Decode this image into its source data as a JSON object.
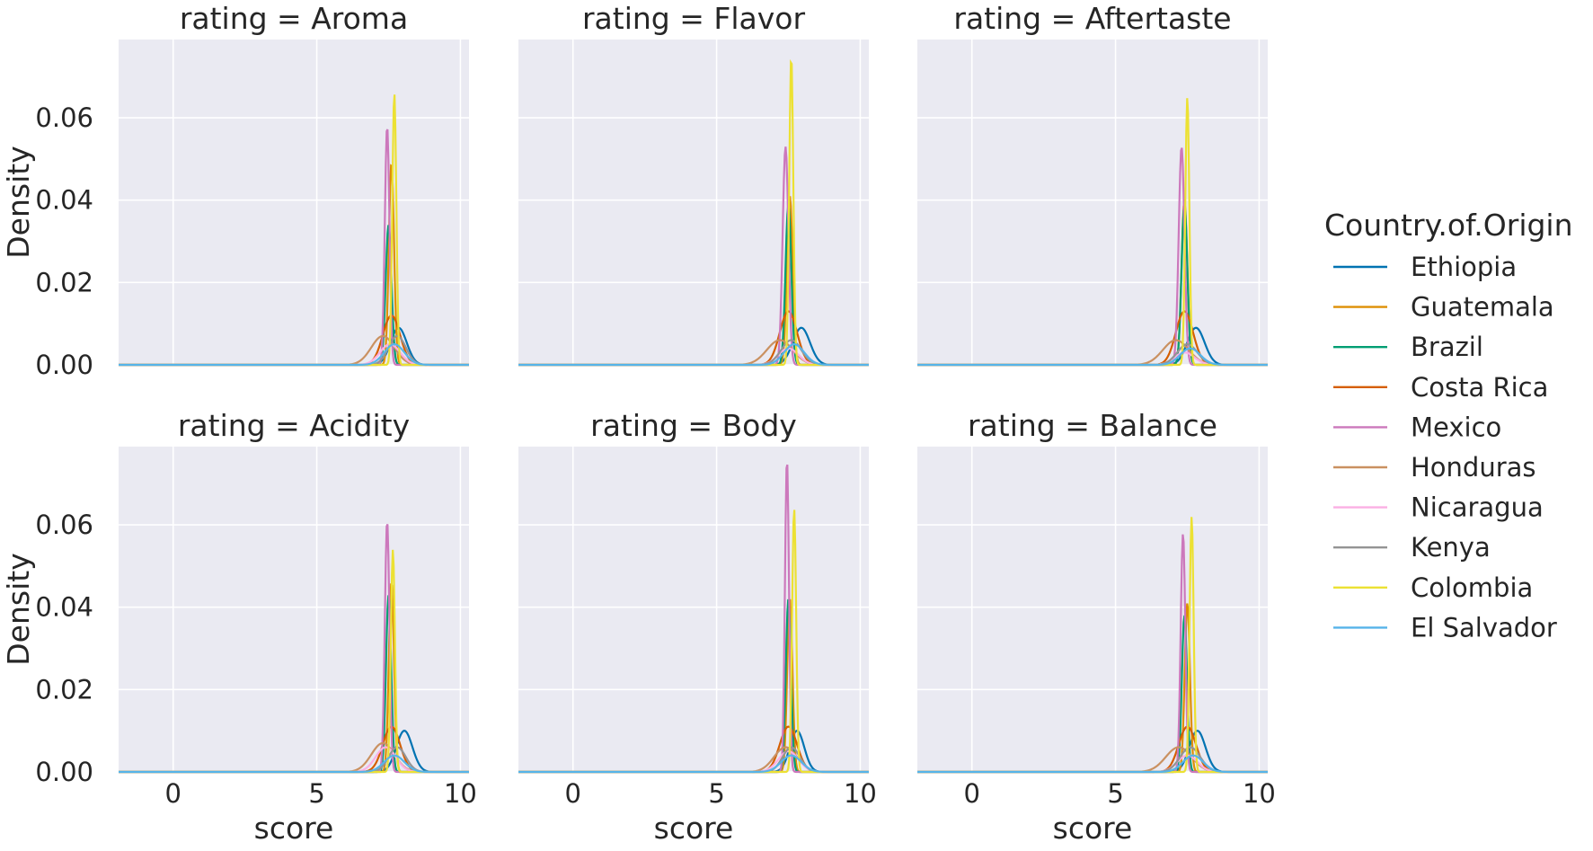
{
  "chart_data": {
    "type": "line",
    "kind": "kde",
    "facet_var_label": "rating",
    "facet_titles": [
      "rating = Aroma",
      "rating = Flavor",
      "rating = Aftertaste",
      "rating = Acidity",
      "rating = Body",
      "rating = Balance"
    ],
    "xlabel": "score",
    "ylabel": "Density",
    "xlim": [
      -1.9,
      10.3
    ],
    "ylim": [
      0,
      0.079
    ],
    "xticks": [
      0,
      5,
      10
    ],
    "xtick_labels": [
      "0",
      "5",
      "10"
    ],
    "yticks": [
      0,
      0.02,
      0.04,
      0.06
    ],
    "ytick_labels": [
      "0.00",
      "0.02",
      "0.04",
      "0.06"
    ],
    "grid": true,
    "legend": {
      "title": "Country.of.Origin",
      "placement": "right",
      "entries": [
        "Ethiopia",
        "Guatemala",
        "Brazil",
        "Costa Rica",
        "Mexico",
        "Honduras",
        "Nicaragua",
        "Kenya",
        "Colombia",
        "El Salvador"
      ]
    },
    "series_colors": {
      "Ethiopia": "#0173b2",
      "Guatemala": "#de8f05",
      "Brazil": "#029e73",
      "Costa Rica": "#d55e00",
      "Mexico": "#cc78bc",
      "Honduras": "#ca9161",
      "Nicaragua": "#fbafe4",
      "Kenya": "#949494",
      "Colombia": "#ece133",
      "El Salvador": "#56b4e9"
    },
    "facets": [
      {
        "rating": "Aroma",
        "series": [
          {
            "name": "Ethiopia",
            "peak_x": 7.85,
            "peak_density": 0.009,
            "sd": 0.28
          },
          {
            "name": "Guatemala",
            "peak_x": 7.6,
            "peak_density": 0.049,
            "sd": 0.09
          },
          {
            "name": "Brazil",
            "peak_x": 7.5,
            "peak_density": 0.034,
            "sd": 0.1
          },
          {
            "name": "Costa Rica",
            "peak_x": 7.6,
            "peak_density": 0.012,
            "sd": 0.3
          },
          {
            "name": "Mexico",
            "peak_x": 7.45,
            "peak_density": 0.058,
            "sd": 0.08
          },
          {
            "name": "Honduras",
            "peak_x": 7.3,
            "peak_density": 0.007,
            "sd": 0.4
          },
          {
            "name": "Nicaragua",
            "peak_x": 7.55,
            "peak_density": 0.005,
            "sd": 0.35
          },
          {
            "name": "Kenya",
            "peak_x": 7.8,
            "peak_density": 0.007,
            "sd": 0.3
          },
          {
            "name": "Colombia",
            "peak_x": 7.7,
            "peak_density": 0.066,
            "sd": 0.07
          },
          {
            "name": "El Salvador",
            "peak_x": 7.7,
            "peak_density": 0.005,
            "sd": 0.35
          }
        ]
      },
      {
        "rating": "Flavor",
        "series": [
          {
            "name": "Ethiopia",
            "peak_x": 7.95,
            "peak_density": 0.009,
            "sd": 0.3
          },
          {
            "name": "Guatemala",
            "peak_x": 7.55,
            "peak_density": 0.041,
            "sd": 0.1
          },
          {
            "name": "Brazil",
            "peak_x": 7.5,
            "peak_density": 0.039,
            "sd": 0.1
          },
          {
            "name": "Costa Rica",
            "peak_x": 7.5,
            "peak_density": 0.013,
            "sd": 0.3
          },
          {
            "name": "Mexico",
            "peak_x": 7.4,
            "peak_density": 0.053,
            "sd": 0.1
          },
          {
            "name": "Honduras",
            "peak_x": 7.2,
            "peak_density": 0.006,
            "sd": 0.45
          },
          {
            "name": "Nicaragua",
            "peak_x": 7.5,
            "peak_density": 0.004,
            "sd": 0.35
          },
          {
            "name": "Kenya",
            "peak_x": 7.6,
            "peak_density": 0.006,
            "sd": 0.35
          },
          {
            "name": "Colombia",
            "peak_x": 7.6,
            "peak_density": 0.075,
            "sd": 0.07
          },
          {
            "name": "El Salvador",
            "peak_x": 7.7,
            "peak_density": 0.005,
            "sd": 0.35
          }
        ]
      },
      {
        "rating": "Aftertaste",
        "series": [
          {
            "name": "Ethiopia",
            "peak_x": 7.8,
            "peak_density": 0.009,
            "sd": 0.3
          },
          {
            "name": "Guatemala",
            "peak_x": 7.4,
            "peak_density": 0.04,
            "sd": 0.1
          },
          {
            "name": "Brazil",
            "peak_x": 7.4,
            "peak_density": 0.039,
            "sd": 0.1
          },
          {
            "name": "Costa Rica",
            "peak_x": 7.4,
            "peak_density": 0.013,
            "sd": 0.3
          },
          {
            "name": "Mexico",
            "peak_x": 7.3,
            "peak_density": 0.053,
            "sd": 0.1
          },
          {
            "name": "Honduras",
            "peak_x": 7.1,
            "peak_density": 0.006,
            "sd": 0.45
          },
          {
            "name": "Nicaragua",
            "peak_x": 7.4,
            "peak_density": 0.003,
            "sd": 0.35
          },
          {
            "name": "Kenya",
            "peak_x": 7.5,
            "peak_density": 0.005,
            "sd": 0.35
          },
          {
            "name": "Colombia",
            "peak_x": 7.5,
            "peak_density": 0.065,
            "sd": 0.07
          },
          {
            "name": "El Salvador",
            "peak_x": 7.6,
            "peak_density": 0.004,
            "sd": 0.35
          }
        ]
      },
      {
        "rating": "Acidity",
        "series": [
          {
            "name": "Ethiopia",
            "peak_x": 8.05,
            "peak_density": 0.01,
            "sd": 0.28
          },
          {
            "name": "Guatemala",
            "peak_x": 7.6,
            "peak_density": 0.046,
            "sd": 0.09
          },
          {
            "name": "Brazil",
            "peak_x": 7.5,
            "peak_density": 0.043,
            "sd": 0.09
          },
          {
            "name": "Costa Rica",
            "peak_x": 7.6,
            "peak_density": 0.011,
            "sd": 0.3
          },
          {
            "name": "Mexico",
            "peak_x": 7.45,
            "peak_density": 0.061,
            "sd": 0.08
          },
          {
            "name": "Honduras",
            "peak_x": 7.3,
            "peak_density": 0.007,
            "sd": 0.4
          },
          {
            "name": "Nicaragua",
            "peak_x": 7.4,
            "peak_density": 0.006,
            "sd": 0.35
          },
          {
            "name": "Kenya",
            "peak_x": 7.8,
            "peak_density": 0.006,
            "sd": 0.3
          },
          {
            "name": "Colombia",
            "peak_x": 7.65,
            "peak_density": 0.054,
            "sd": 0.07
          },
          {
            "name": "El Salvador",
            "peak_x": 7.7,
            "peak_density": 0.004,
            "sd": 0.35
          }
        ]
      },
      {
        "rating": "Body",
        "series": [
          {
            "name": "Ethiopia",
            "peak_x": 7.8,
            "peak_density": 0.01,
            "sd": 0.25
          },
          {
            "name": "Guatemala",
            "peak_x": 7.55,
            "peak_density": 0.042,
            "sd": 0.09
          },
          {
            "name": "Brazil",
            "peak_x": 7.5,
            "peak_density": 0.042,
            "sd": 0.09
          },
          {
            "name": "Costa Rica",
            "peak_x": 7.5,
            "peak_density": 0.011,
            "sd": 0.3
          },
          {
            "name": "Mexico",
            "peak_x": 7.45,
            "peak_density": 0.076,
            "sd": 0.07
          },
          {
            "name": "Honduras",
            "peak_x": 7.4,
            "peak_density": 0.006,
            "sd": 0.4
          },
          {
            "name": "Nicaragua",
            "peak_x": 7.5,
            "peak_density": 0.005,
            "sd": 0.35
          },
          {
            "name": "Kenya",
            "peak_x": 7.6,
            "peak_density": 0.006,
            "sd": 0.3
          },
          {
            "name": "Colombia",
            "peak_x": 7.7,
            "peak_density": 0.064,
            "sd": 0.07
          },
          {
            "name": "El Salvador",
            "peak_x": 7.6,
            "peak_density": 0.004,
            "sd": 0.35
          }
        ]
      },
      {
        "rating": "Balance",
        "series": [
          {
            "name": "Ethiopia",
            "peak_x": 7.85,
            "peak_density": 0.01,
            "sd": 0.28
          },
          {
            "name": "Guatemala",
            "peak_x": 7.5,
            "peak_density": 0.041,
            "sd": 0.09
          },
          {
            "name": "Brazil",
            "peak_x": 7.4,
            "peak_density": 0.038,
            "sd": 0.09
          },
          {
            "name": "Costa Rica",
            "peak_x": 7.5,
            "peak_density": 0.011,
            "sd": 0.3
          },
          {
            "name": "Mexico",
            "peak_x": 7.35,
            "peak_density": 0.058,
            "sd": 0.08
          },
          {
            "name": "Honduras",
            "peak_x": 7.2,
            "peak_density": 0.006,
            "sd": 0.45
          },
          {
            "name": "Nicaragua",
            "peak_x": 7.5,
            "peak_density": 0.004,
            "sd": 0.35
          },
          {
            "name": "Kenya",
            "peak_x": 7.6,
            "peak_density": 0.006,
            "sd": 0.35
          },
          {
            "name": "Colombia",
            "peak_x": 7.65,
            "peak_density": 0.062,
            "sd": 0.07
          },
          {
            "name": "El Salvador",
            "peak_x": 7.7,
            "peak_density": 0.004,
            "sd": 0.35
          }
        ]
      }
    ]
  }
}
